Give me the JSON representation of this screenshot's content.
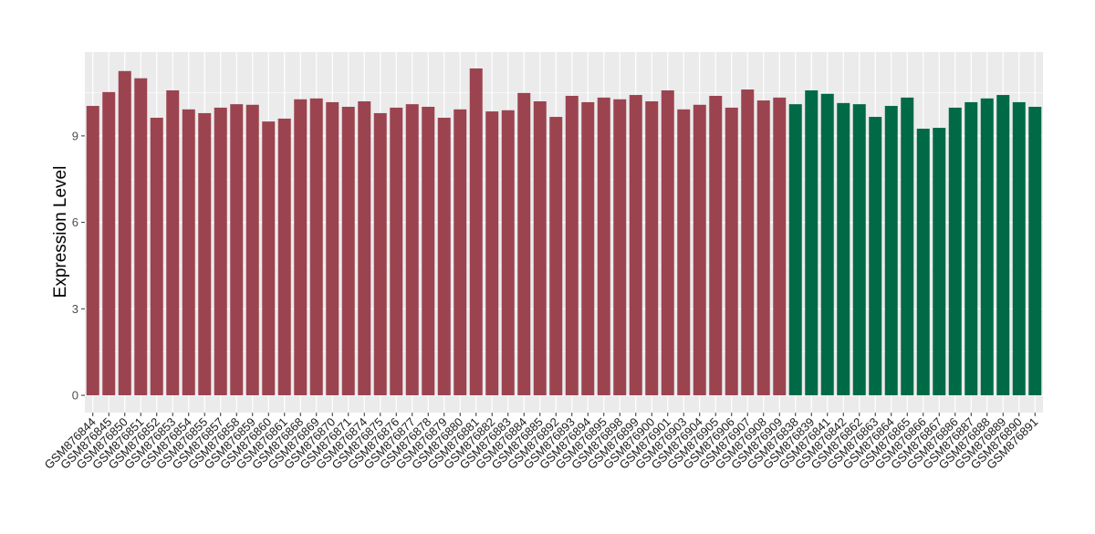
{
  "chart_data": {
    "type": "bar",
    "title": "",
    "xlabel": "",
    "ylabel": "Expression Level",
    "ylim": [
      -0.6,
      11.91
    ],
    "yticks": [
      0,
      3,
      6,
      9
    ],
    "grid": true,
    "legend": "none",
    "colors": {
      "group1": "#9B4450",
      "group2": "#006A46",
      "panel": "#EBEBEB",
      "grid": "#FFFFFF"
    },
    "categories": [
      "GSM876844",
      "GSM876845",
      "GSM876850",
      "GSM876851",
      "GSM876852",
      "GSM876853",
      "GSM876854",
      "GSM876855",
      "GSM876857",
      "GSM876858",
      "GSM876859",
      "GSM876860",
      "GSM876861",
      "GSM876868",
      "GSM876869",
      "GSM876870",
      "GSM876871",
      "GSM876874",
      "GSM876875",
      "GSM876876",
      "GSM876877",
      "GSM876878",
      "GSM876879",
      "GSM876880",
      "GSM876881",
      "GSM876882",
      "GSM876883",
      "GSM876884",
      "GSM876885",
      "GSM876892",
      "GSM876893",
      "GSM876894",
      "GSM876895",
      "GSM876898",
      "GSM876899",
      "GSM876900",
      "GSM876901",
      "GSM876903",
      "GSM876904",
      "GSM876905",
      "GSM876906",
      "GSM876907",
      "GSM876908",
      "GSM876909",
      "GSM876838",
      "GSM876839",
      "GSM876841",
      "GSM876842",
      "GSM876862",
      "GSM876863",
      "GSM876864",
      "GSM876865",
      "GSM876866",
      "GSM876867",
      "GSM876886",
      "GSM876887",
      "GSM876888",
      "GSM876889",
      "GSM876890",
      "GSM876891"
    ],
    "values": [
      10.04,
      10.52,
      11.25,
      11.0,
      9.63,
      10.58,
      9.92,
      9.79,
      9.98,
      10.1,
      10.08,
      9.5,
      9.6,
      10.27,
      10.3,
      10.17,
      10.01,
      10.2,
      9.79,
      9.98,
      10.1,
      10.01,
      9.63,
      9.92,
      11.34,
      9.85,
      9.89,
      10.49,
      10.2,
      9.66,
      10.39,
      10.17,
      10.33,
      10.27,
      10.42,
      10.2,
      10.58,
      9.92,
      10.08,
      10.39,
      9.98,
      10.61,
      10.23,
      10.33,
      10.1,
      10.58,
      10.46,
      10.14,
      10.1,
      9.66,
      10.04,
      10.33,
      9.25,
      9.28,
      9.98,
      10.17,
      10.3,
      10.42,
      10.17,
      10.01
    ],
    "groups": [
      "group1",
      "group1",
      "group1",
      "group1",
      "group1",
      "group1",
      "group1",
      "group1",
      "group1",
      "group1",
      "group1",
      "group1",
      "group1",
      "group1",
      "group1",
      "group1",
      "group1",
      "group1",
      "group1",
      "group1",
      "group1",
      "group1",
      "group1",
      "group1",
      "group1",
      "group1",
      "group1",
      "group1",
      "group1",
      "group1",
      "group1",
      "group1",
      "group1",
      "group1",
      "group1",
      "group1",
      "group1",
      "group1",
      "group1",
      "group1",
      "group1",
      "group1",
      "group1",
      "group1",
      "group2",
      "group2",
      "group2",
      "group2",
      "group2",
      "group2",
      "group2",
      "group2",
      "group2",
      "group2",
      "group2",
      "group2",
      "group2",
      "group2",
      "group2",
      "group2"
    ]
  }
}
